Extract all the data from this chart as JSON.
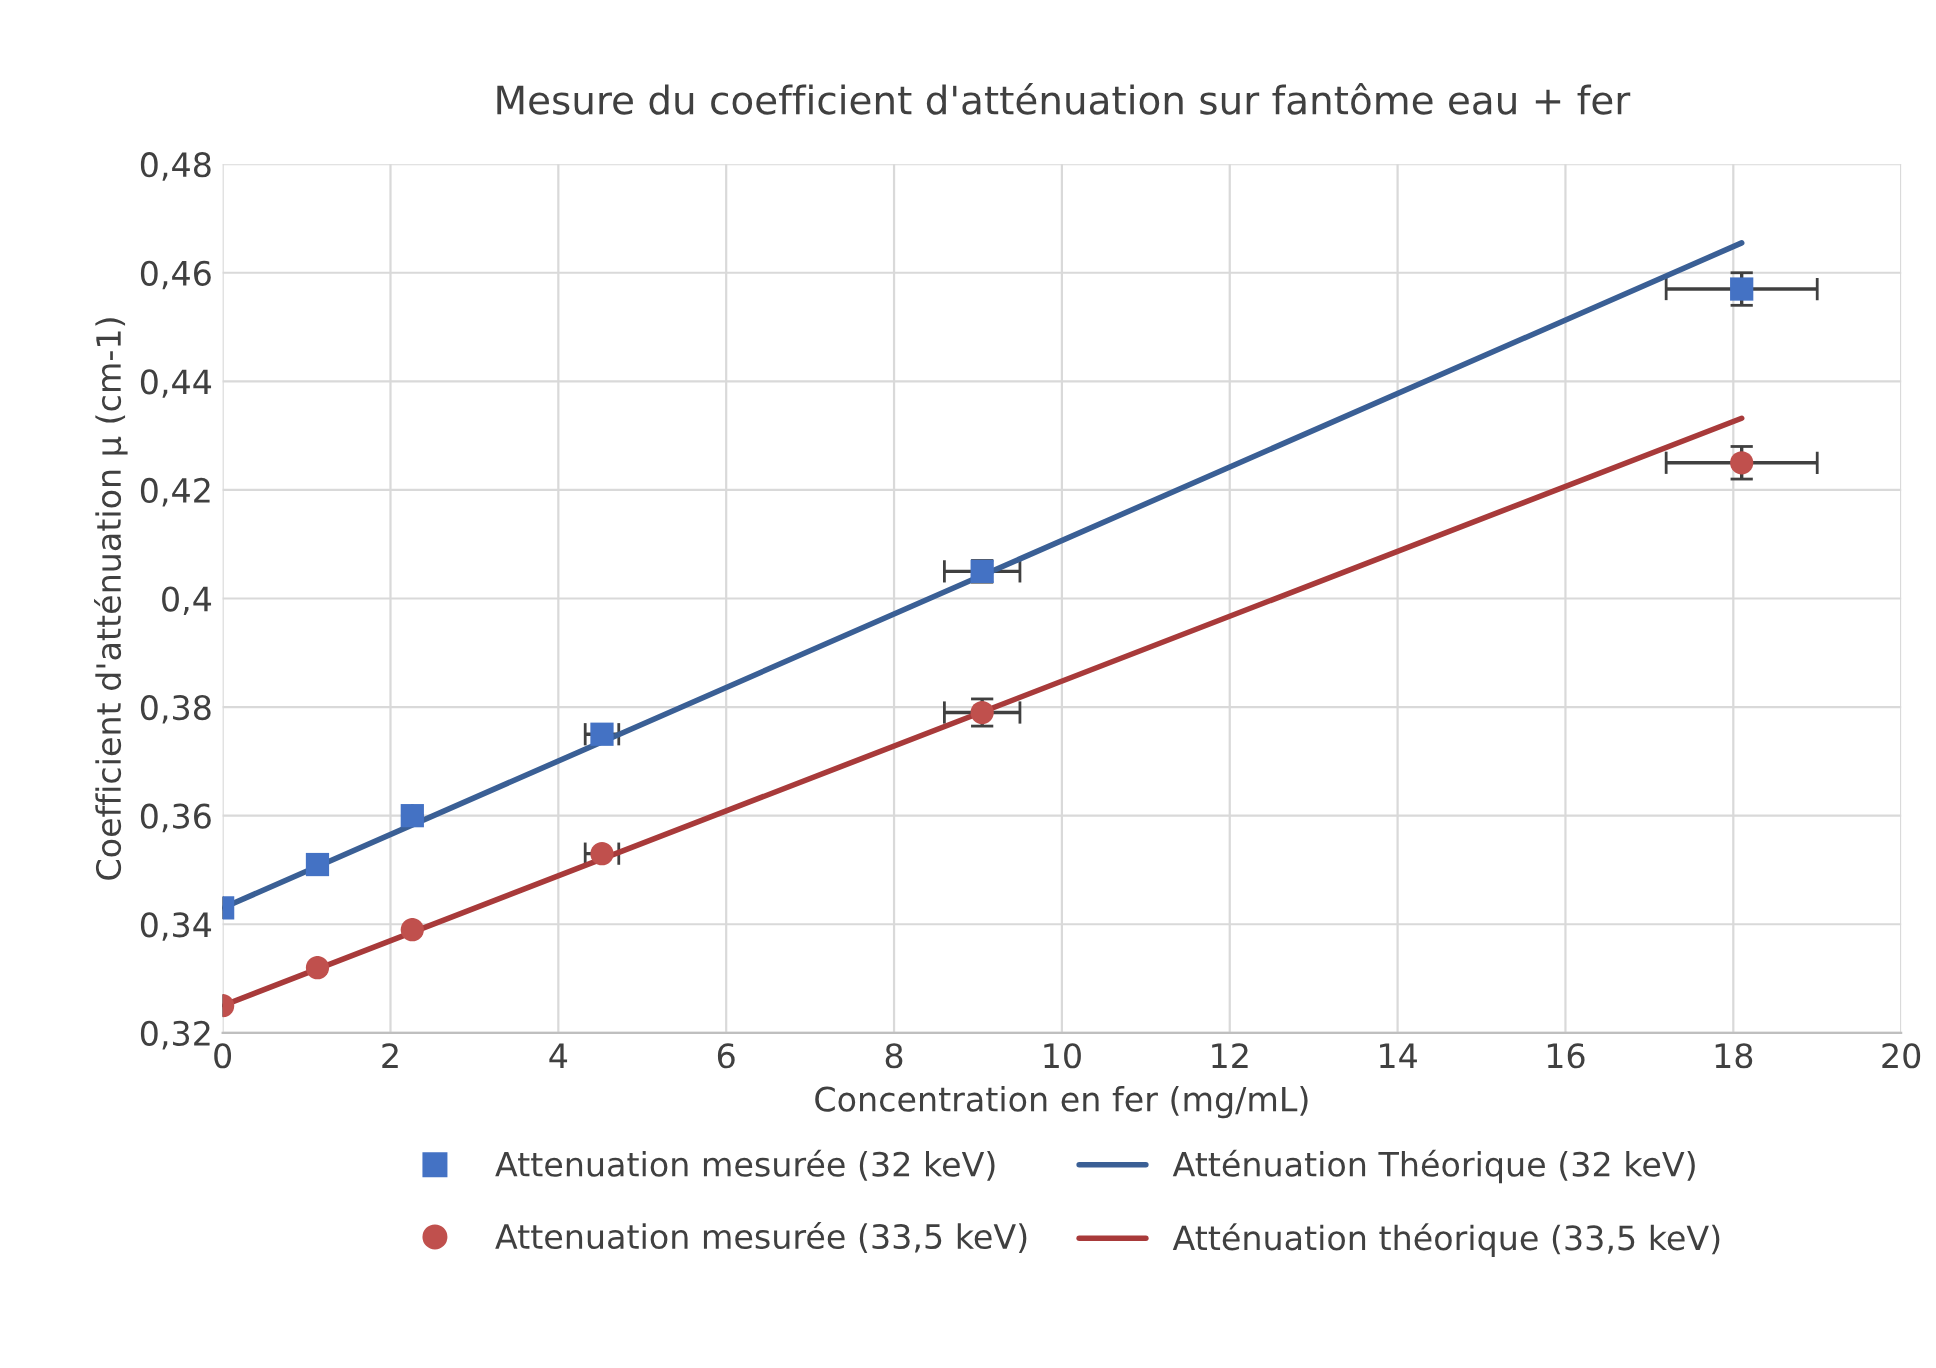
{
  "chart_data": {
    "type": "scatter",
    "title": "Mesure du coefficient d'atténuation sur fantôme eau + fer",
    "xlabel": "Concentration en fer (mg/mL)",
    "ylabel": "Coefficient d'atténuation µ (cm-1)",
    "xlim": [
      0,
      20
    ],
    "xticks": [
      0,
      2,
      4,
      6,
      8,
      10,
      12,
      14,
      16,
      18,
      20
    ],
    "ylim": [
      0.32,
      0.48
    ],
    "yticks": [
      {
        "value": 0.32,
        "label": "0,32"
      },
      {
        "value": 0.34,
        "label": "0,34"
      },
      {
        "value": 0.36,
        "label": "0,36"
      },
      {
        "value": 0.38,
        "label": "0,38"
      },
      {
        "value": 0.4,
        "label": "0,4"
      },
      {
        "value": 0.42,
        "label": "0,42"
      },
      {
        "value": 0.44,
        "label": "0,44"
      },
      {
        "value": 0.46,
        "label": "0,46"
      },
      {
        "value": 0.48,
        "label": "0,48"
      }
    ],
    "grid": true,
    "legend": "bottom",
    "series": [
      {
        "name": "Attenuation mesurée (32 keV)",
        "marker": "square",
        "color": "#4472c4",
        "x": [
          0,
          1.13,
          2.26,
          4.52,
          9.05,
          18.1
        ],
        "values": [
          0.343,
          0.351,
          0.36,
          0.375,
          0.405,
          0.457
        ],
        "errors": [
          null,
          null,
          null,
          null,
          0.002,
          0.003
        ],
        "xerrors": [
          null,
          null,
          null,
          0.2,
          0.45,
          0.9
        ]
      },
      {
        "name": "Atténuation Théorique (32 keV)",
        "type": "line",
        "marker": "none",
        "color": "#3a5f95",
        "x": [
          0,
          18.1
        ],
        "values": [
          0.343,
          0.4655
        ]
      },
      {
        "name": "Attenuation mesurée (33,5 keV)",
        "marker": "circle",
        "color": "#c0504d",
        "x": [
          0,
          1.13,
          2.26,
          4.52,
          9.05,
          18.1
        ],
        "values": [
          0.325,
          0.332,
          0.339,
          0.353,
          0.379,
          0.425
        ],
        "errors": [
          null,
          null,
          null,
          null,
          0.0025,
          0.003
        ],
        "xerrors": [
          null,
          null,
          null,
          0.2,
          0.45,
          0.9
        ]
      },
      {
        "name": "Atténuation théorique (33,5 keV)",
        "type": "line",
        "marker": "none",
        "color": "#a83a3a",
        "x": [
          0,
          18.1
        ],
        "values": [
          0.325,
          0.4332
        ]
      }
    ]
  }
}
